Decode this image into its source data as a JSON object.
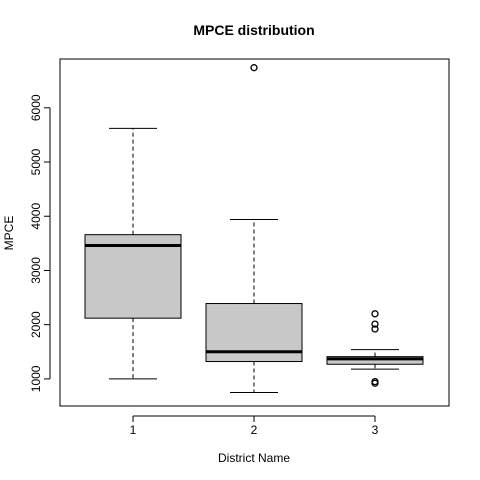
{
  "chart_data": {
    "type": "boxplot",
    "title": "MPCE distribution",
    "xlabel": "District Name",
    "ylabel": "MPCE",
    "categories": [
      "1",
      "2",
      "3"
    ],
    "ylim": [
      500,
      6900
    ],
    "yticks": [
      1000,
      2000,
      3000,
      4000,
      5000,
      6000
    ],
    "box_fill": "#c8c8c8",
    "boxes": [
      {
        "category": "1",
        "whisker_low": 1000,
        "q1": 2120,
        "median": 3460,
        "q3": 3660,
        "whisker_high": 5620,
        "outliers": []
      },
      {
        "category": "2",
        "whisker_low": 750,
        "q1": 1320,
        "median": 1500,
        "q3": 2390,
        "whisker_high": 3940,
        "outliers": [
          6740
        ]
      },
      {
        "category": "3",
        "whisker_low": 1180,
        "q1": 1270,
        "median": 1370,
        "q3": 1410,
        "whisker_high": 1540,
        "outliers": [
          2200,
          2010,
          1920,
          950,
          920
        ]
      }
    ]
  }
}
